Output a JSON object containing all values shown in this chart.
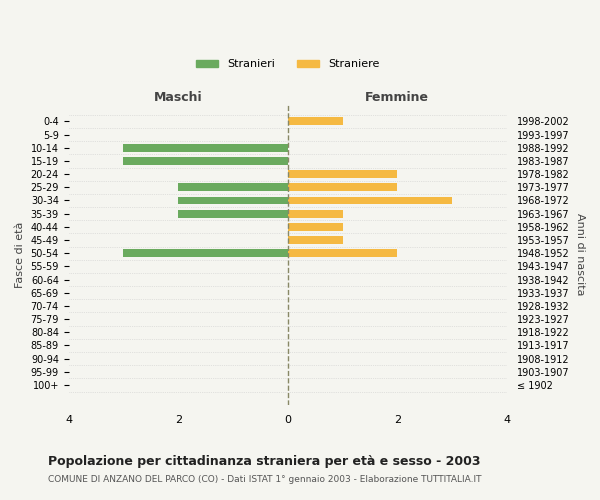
{
  "age_groups": [
    "100+",
    "95-99",
    "90-94",
    "85-89",
    "80-84",
    "75-79",
    "70-74",
    "65-69",
    "60-64",
    "55-59",
    "50-54",
    "45-49",
    "40-44",
    "35-39",
    "30-34",
    "25-29",
    "20-24",
    "15-19",
    "10-14",
    "5-9",
    "0-4"
  ],
  "birth_years": [
    "≤ 1902",
    "1903-1907",
    "1908-1912",
    "1913-1917",
    "1918-1922",
    "1923-1927",
    "1928-1932",
    "1933-1937",
    "1938-1942",
    "1943-1947",
    "1948-1952",
    "1953-1957",
    "1958-1962",
    "1963-1967",
    "1968-1972",
    "1973-1977",
    "1978-1982",
    "1983-1987",
    "1988-1992",
    "1993-1997",
    "1998-2002"
  ],
  "stranieri": [
    0,
    0,
    0,
    0,
    0,
    0,
    0,
    0,
    0,
    0,
    3,
    0,
    0,
    2,
    2,
    2,
    0,
    3,
    3,
    0,
    0
  ],
  "straniere": [
    0,
    0,
    0,
    0,
    0,
    0,
    0,
    0,
    0,
    0,
    2,
    1,
    1,
    1,
    3,
    2,
    2,
    0,
    0,
    0,
    1
  ],
  "color_stranieri": "#6aaa5e",
  "color_straniere": "#f5b942",
  "xlim": 4,
  "title": "Popolazione per cittadinanza straniera per età e sesso - 2003",
  "subtitle": "COMUNE DI ANZANO DEL PARCO (CO) - Dati ISTAT 1° gennaio 2003 - Elaborazione TUTTITALIA.IT",
  "xlabel_left": "Maschi",
  "xlabel_right": "Femmine",
  "ylabel_left": "Fasce di età",
  "ylabel_right": "Anni di nascita",
  "legend_stranieri": "Stranieri",
  "legend_straniere": "Straniere",
  "bg_color": "#f5f5f0"
}
